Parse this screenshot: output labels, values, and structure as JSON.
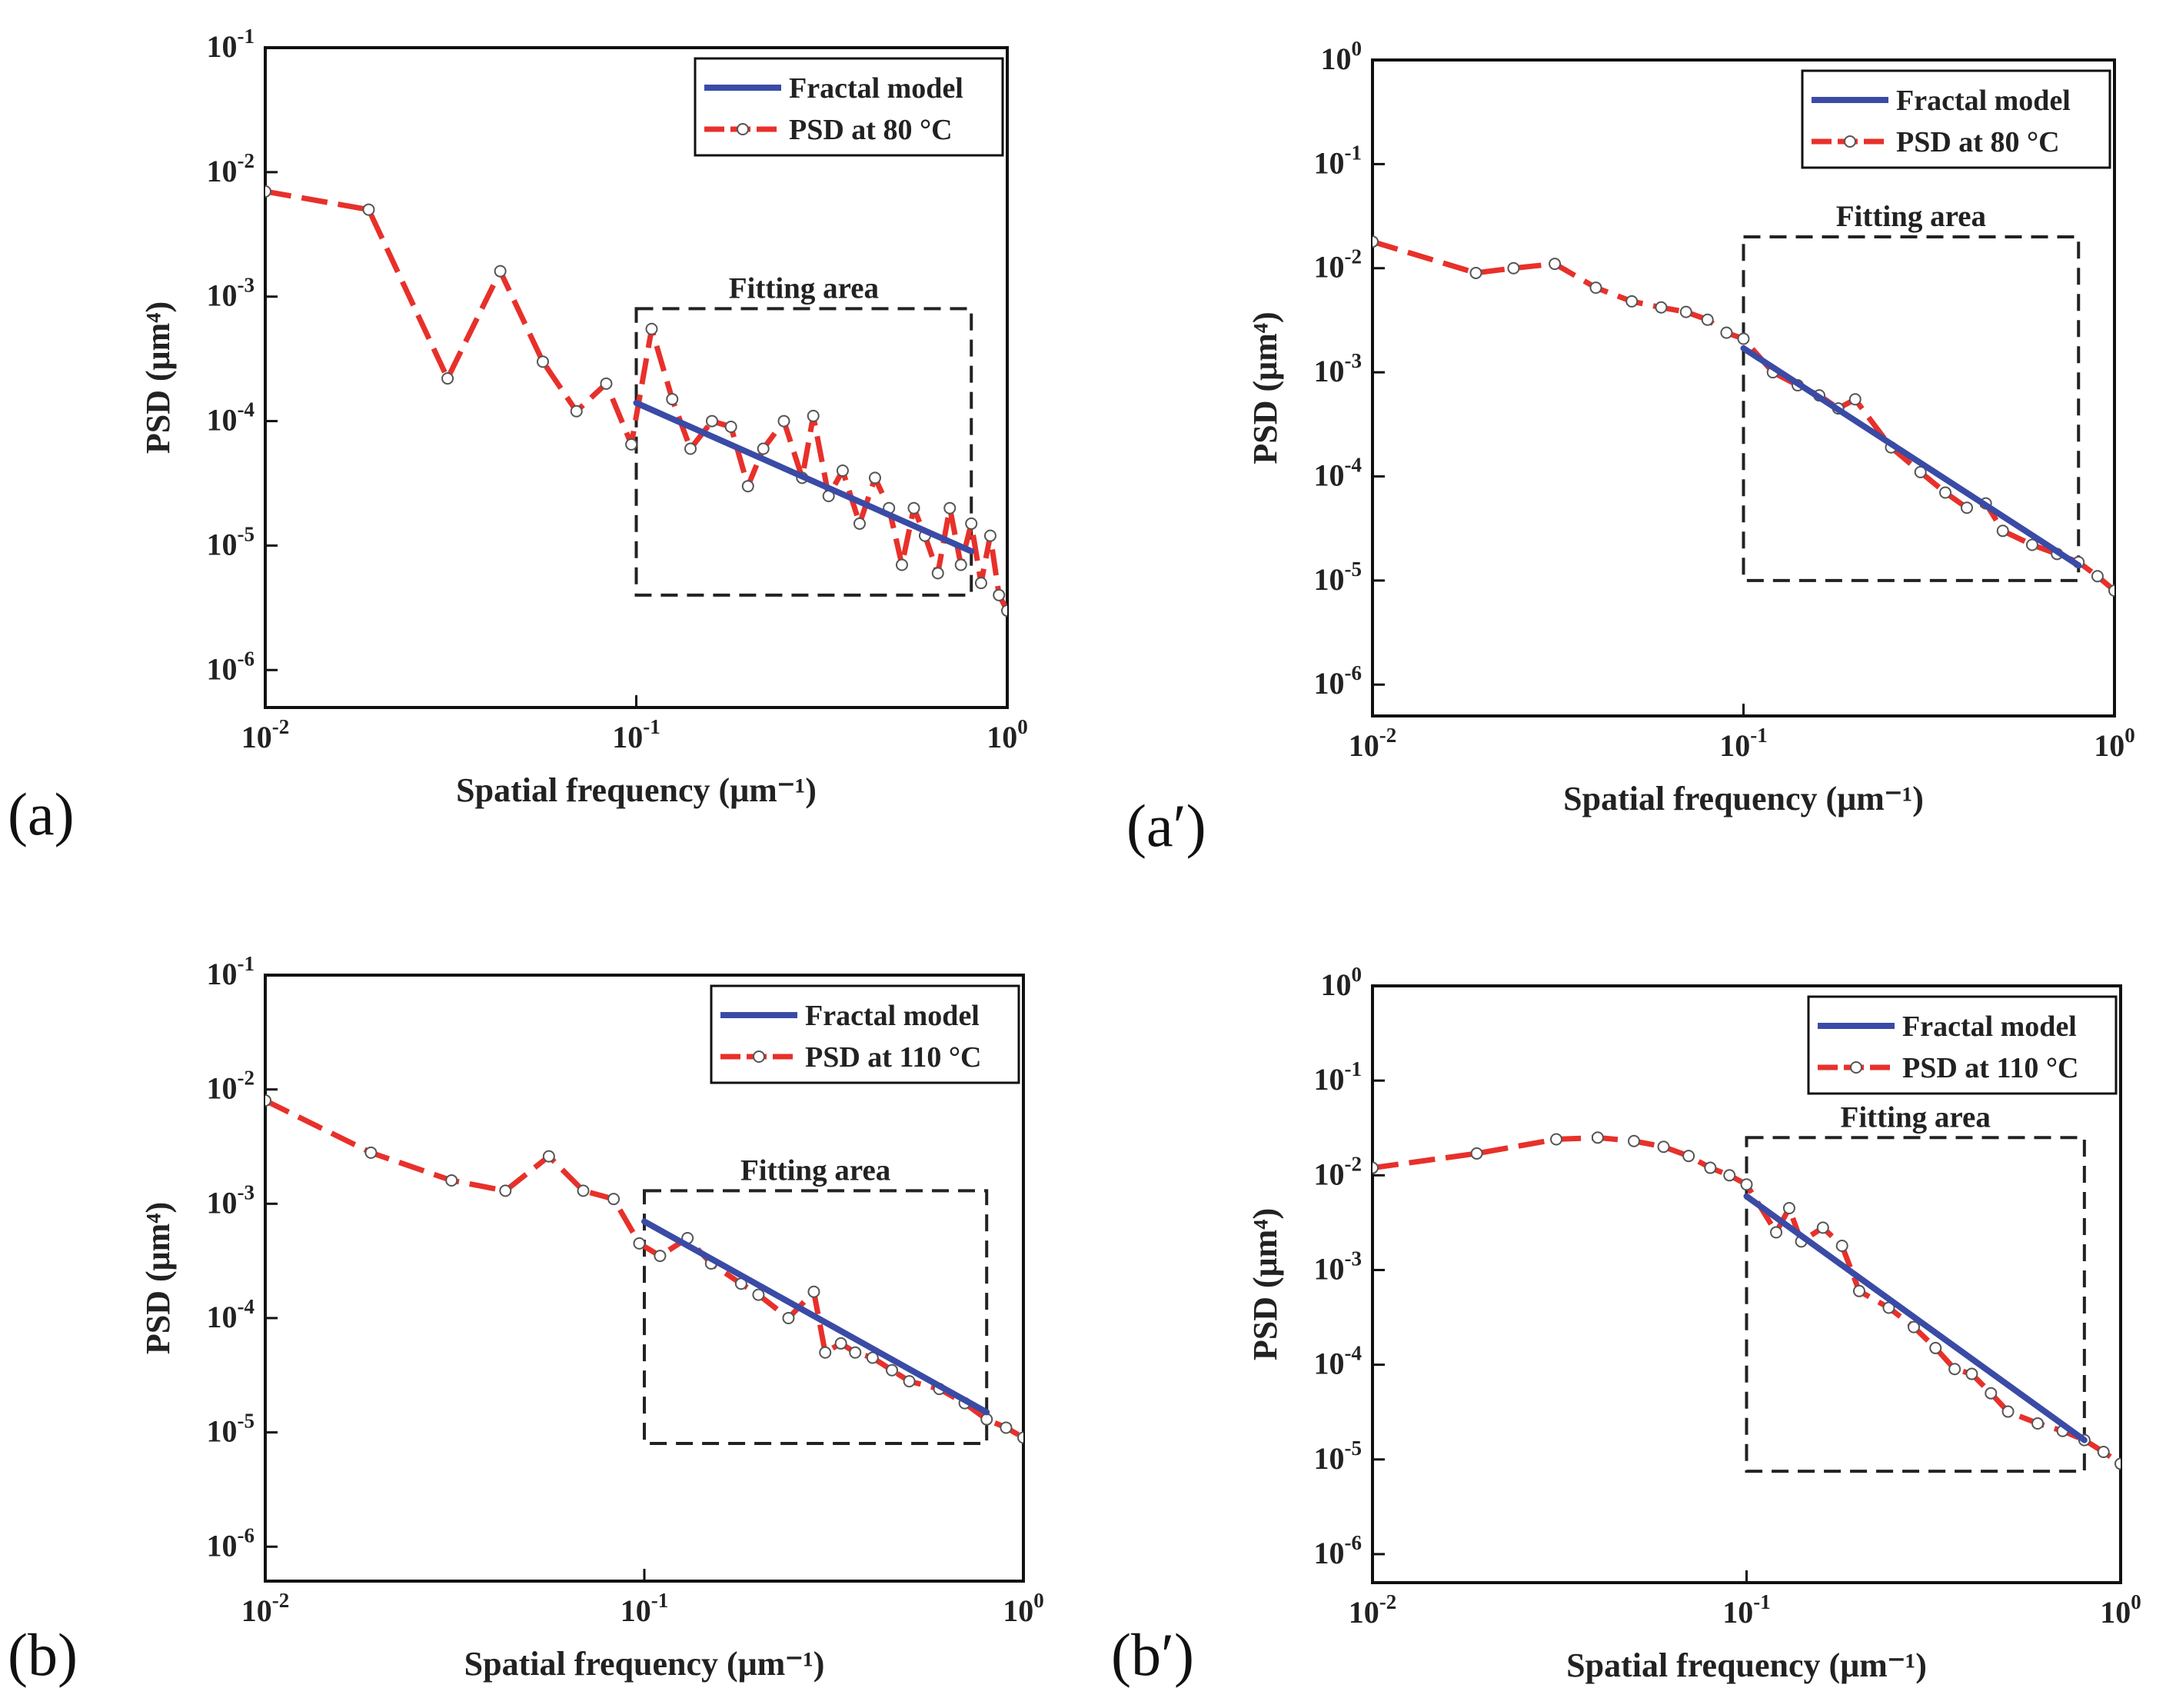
{
  "figure": {
    "panel_letters": [
      "(a)",
      "(a′)",
      "(b)",
      "(b′)"
    ]
  },
  "colors": {
    "fractal_model": "#3a4ba6",
    "psd": "#e8302a",
    "marker_fill": "#ffffff",
    "marker_stroke": "#555555",
    "box": "#222222",
    "axis": "#111111"
  },
  "chart_data": [
    {
      "type": "line",
      "panel": "(a)",
      "xlabel": "Spatial frequency (μm⁻¹)",
      "ylabel": "PSD (μm⁴)",
      "xscale": "log",
      "yscale": "log",
      "xlim": [
        0.01,
        1
      ],
      "ylim": [
        5e-07,
        0.1
      ],
      "x_ticks": [
        "10^-2",
        "10^-1",
        "10^0"
      ],
      "y_ticks": [
        "10^-6",
        "10^-5",
        "10^-4",
        "10^-3",
        "10^-2",
        "10^-1"
      ],
      "legend_position": "top-right",
      "annotation": "Fitting area",
      "fitting_area": {
        "x": [
          0.1,
          0.8
        ],
        "y": [
          4e-06,
          0.0008
        ]
      },
      "series": [
        {
          "name": "Fractal model",
          "style": "solid",
          "x": [
            0.1,
            0.8
          ],
          "y": [
            0.00014,
            9e-06
          ]
        },
        {
          "name": "PSD at 80 °C",
          "style": "dashed-markers",
          "x": [
            0.01,
            0.019,
            0.031,
            0.043,
            0.056,
            0.069,
            0.083,
            0.097,
            0.11,
            0.125,
            0.14,
            0.16,
            0.18,
            0.2,
            0.22,
            0.25,
            0.28,
            0.3,
            0.33,
            0.36,
            0.4,
            0.44,
            0.48,
            0.52,
            0.56,
            0.6,
            0.65,
            0.7,
            0.75,
            0.8,
            0.85,
            0.9,
            0.95,
            1.0
          ],
          "y": [
            0.007,
            0.005,
            0.00022,
            0.0016,
            0.0003,
            0.00012,
            0.0002,
            6.5e-05,
            0.00055,
            0.00015,
            6e-05,
            0.0001,
            9e-05,
            3e-05,
            6e-05,
            0.0001,
            3.5e-05,
            0.00011,
            2.5e-05,
            4e-05,
            1.5e-05,
            3.5e-05,
            2e-05,
            7e-06,
            2e-05,
            1.2e-05,
            6e-06,
            2e-05,
            7e-06,
            1.5e-05,
            5e-06,
            1.2e-05,
            4e-06,
            3e-06
          ]
        }
      ]
    },
    {
      "type": "line",
      "panel": "(a′)",
      "xlabel": "Spatial frequency (μm⁻¹)",
      "ylabel": "PSD (μm⁴)",
      "xscale": "log",
      "yscale": "log",
      "xlim": [
        0.01,
        1
      ],
      "ylim": [
        5e-07,
        1
      ],
      "x_ticks": [
        "10^-2",
        "10^-1",
        "10^0"
      ],
      "y_ticks": [
        "10^-6",
        "10^-5",
        "10^-4",
        "10^-3",
        "10^-2",
        "10^-1",
        "10^0"
      ],
      "legend_position": "top-right",
      "annotation": "Fitting area",
      "fitting_area": {
        "x": [
          0.1,
          0.8
        ],
        "y": [
          1e-05,
          0.02
        ]
      },
      "series": [
        {
          "name": "Fractal model",
          "style": "solid",
          "x": [
            0.1,
            0.8
          ],
          "y": [
            0.0017,
            1.4e-05
          ]
        },
        {
          "name": "PSD at 80 °C",
          "style": "dashed-markers",
          "x": [
            0.01,
            0.019,
            0.024,
            0.031,
            0.04,
            0.05,
            0.06,
            0.07,
            0.08,
            0.09,
            0.1,
            0.12,
            0.14,
            0.16,
            0.18,
            0.2,
            0.25,
            0.3,
            0.35,
            0.4,
            0.45,
            0.5,
            0.6,
            0.7,
            0.8,
            0.9,
            1.0
          ],
          "y": [
            0.018,
            0.009,
            0.01,
            0.011,
            0.0065,
            0.0048,
            0.0042,
            0.0038,
            0.0032,
            0.0024,
            0.0021,
            0.001,
            0.00075,
            0.0006,
            0.00045,
            0.00055,
            0.00019,
            0.00011,
            7e-05,
            5e-05,
            5.5e-05,
            3e-05,
            2.2e-05,
            1.8e-05,
            1.5e-05,
            1.1e-05,
            8e-06
          ]
        }
      ]
    },
    {
      "type": "line",
      "panel": "(b)",
      "xlabel": "Spatial frequency (μm⁻¹)",
      "ylabel": "PSD (μm⁴)",
      "xscale": "log",
      "yscale": "log",
      "xlim": [
        0.01,
        1
      ],
      "ylim": [
        5e-07,
        0.1
      ],
      "x_ticks": [
        "10^-2",
        "10^-1",
        "10^0"
      ],
      "y_ticks": [
        "10^-6",
        "10^-5",
        "10^-4",
        "10^-3",
        "10^-2",
        "10^-1"
      ],
      "legend_position": "top-right",
      "annotation": "Fitting area",
      "fitting_area": {
        "x": [
          0.1,
          0.8
        ],
        "y": [
          8e-06,
          0.0013
        ]
      },
      "series": [
        {
          "name": "Fractal model",
          "style": "solid",
          "x": [
            0.1,
            0.8
          ],
          "y": [
            0.0007,
            1.5e-05
          ]
        },
        {
          "name": "PSD at 110 °C",
          "style": "dashed-markers",
          "x": [
            0.01,
            0.019,
            0.031,
            0.043,
            0.056,
            0.069,
            0.083,
            0.097,
            0.11,
            0.13,
            0.15,
            0.18,
            0.2,
            0.24,
            0.28,
            0.3,
            0.33,
            0.36,
            0.4,
            0.45,
            0.5,
            0.6,
            0.7,
            0.8,
            0.9,
            1.0
          ],
          "y": [
            0.008,
            0.0028,
            0.0016,
            0.0013,
            0.0026,
            0.0013,
            0.0011,
            0.00045,
            0.00035,
            0.0005,
            0.0003,
            0.0002,
            0.00016,
            0.0001,
            0.00017,
            5e-05,
            6e-05,
            5e-05,
            4.5e-05,
            3.5e-05,
            2.8e-05,
            2.4e-05,
            1.8e-05,
            1.3e-05,
            1.1e-05,
            9e-06
          ]
        }
      ]
    },
    {
      "type": "line",
      "panel": "(b′)",
      "xlabel": "Spatial frequency (μm⁻¹)",
      "ylabel": "PSD (μm⁴)",
      "xscale": "log",
      "yscale": "log",
      "xlim": [
        0.01,
        1
      ],
      "ylim": [
        5e-07,
        1
      ],
      "x_ticks": [
        "10^-2",
        "10^-1",
        "10^0"
      ],
      "y_ticks": [
        "10^-6",
        "10^-5",
        "10^-4",
        "10^-3",
        "10^-2",
        "10^-1",
        "10^0"
      ],
      "legend_position": "top-right",
      "annotation": "Fitting area",
      "fitting_area": {
        "x": [
          0.1,
          0.8
        ],
        "y": [
          7.5e-06,
          0.025
        ]
      },
      "series": [
        {
          "name": "Fractal model",
          "style": "solid",
          "x": [
            0.1,
            0.8
          ],
          "y": [
            0.006,
            1.6e-05
          ]
        },
        {
          "name": "PSD at 110 °C",
          "style": "dashed-markers",
          "x": [
            0.01,
            0.019,
            0.031,
            0.04,
            0.05,
            0.06,
            0.07,
            0.08,
            0.09,
            0.1,
            0.12,
            0.13,
            0.14,
            0.16,
            0.18,
            0.2,
            0.24,
            0.28,
            0.32,
            0.36,
            0.4,
            0.45,
            0.5,
            0.6,
            0.7,
            0.8,
            0.9,
            1.0
          ],
          "y": [
            0.012,
            0.017,
            0.024,
            0.025,
            0.023,
            0.02,
            0.016,
            0.012,
            0.01,
            0.008,
            0.0025,
            0.0045,
            0.002,
            0.0028,
            0.0018,
            0.0006,
            0.0004,
            0.00025,
            0.00015,
            9e-05,
            8e-05,
            5e-05,
            3.2e-05,
            2.4e-05,
            2e-05,
            1.6e-05,
            1.2e-05,
            9e-06
          ]
        }
      ]
    }
  ]
}
